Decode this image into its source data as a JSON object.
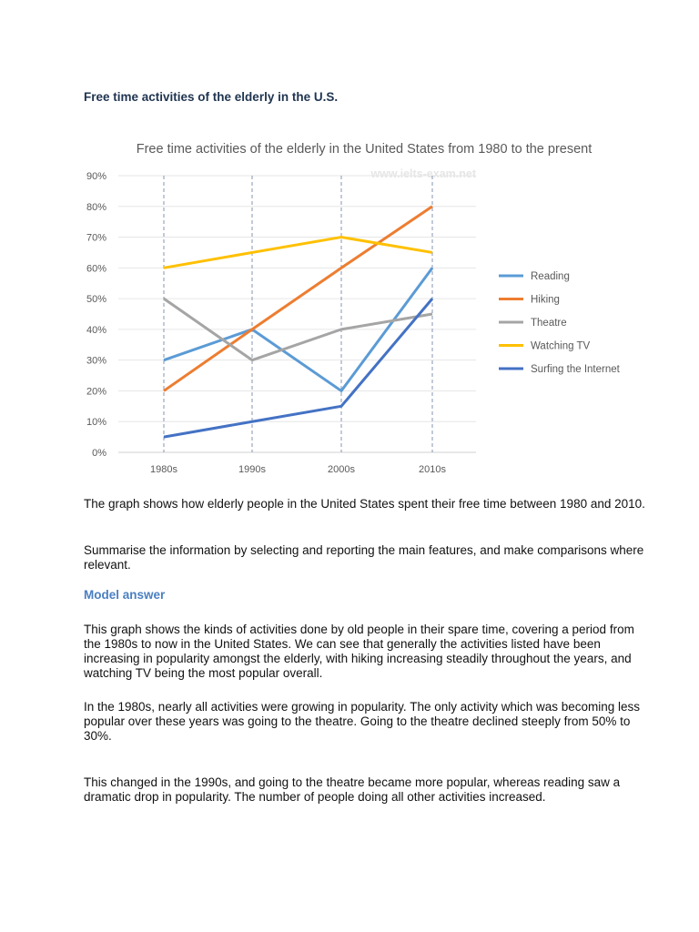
{
  "heading": "Free time activities of the elderly in the U.S.",
  "chart_data": {
    "type": "line",
    "title": "Free time activities of the elderly in the United States from 1980 to the present",
    "watermark": "www.ielts-exam.net",
    "categories": [
      "1980s",
      "1990s",
      "2000s",
      "2010s"
    ],
    "yticks": [
      "0%",
      "10%",
      "20%",
      "30%",
      "40%",
      "50%",
      "60%",
      "70%",
      "80%",
      "90%"
    ],
    "ylim": [
      0,
      90
    ],
    "grid": true,
    "legend": "right",
    "series": [
      {
        "name": "Reading",
        "values": [
          30,
          40,
          20,
          60
        ],
        "color": "#5b9bd5"
      },
      {
        "name": "Hiking",
        "values": [
          20,
          40,
          60,
          80
        ],
        "color": "#ed7d31"
      },
      {
        "name": "Theatre",
        "values": [
          50,
          30,
          40,
          45
        ],
        "color": "#a5a5a5"
      },
      {
        "name": "Watching TV",
        "values": [
          60,
          65,
          70,
          65
        ],
        "color": "#ffc000"
      },
      {
        "name": "Surfing the Internet",
        "values": [
          5,
          10,
          15,
          50
        ],
        "color": "#4472c4"
      }
    ]
  },
  "task": {
    "p1": "The graph shows how elderly people in the United States spent their free time between 1980 and 2010.",
    "p2": "Summarise the information by selecting and reporting the main features, and make comparisons where relevant."
  },
  "model_answer": {
    "heading": "Model answer",
    "paragraphs": [
      "This graph shows the kinds of activities done by old people in their spare time, covering a period from the 1980s to now in the United States. We can see that generally the activities listed have been increasing in popularity amongst the elderly, with hiking increasing steadily throughout the years, and watching TV being the most popular overall.",
      "In the 1980s, nearly all activities were growing in popularity. The only activity which was becoming less popular over these years was going to the theatre. Going to the theatre declined steeply from 50% to 30%.",
      "This changed in the 1990s, and going to the theatre became more popular, whereas reading saw a dramatic drop in popularity. The number of people doing all other activities increased."
    ]
  }
}
